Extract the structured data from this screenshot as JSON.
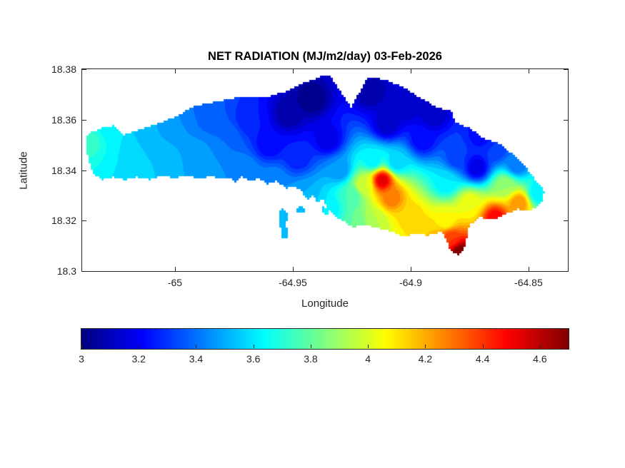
{
  "figure": {
    "title": "NET RADIATION (MJ/m2/day) 03-Feb-2026",
    "background_color": "#ffffff",
    "axis_color": "#262626"
  },
  "axes": {
    "xlabel": "Longitude",
    "ylabel": "Latitude",
    "xlim": [
      -65.0394,
      -64.8333
    ],
    "ylim": [
      18.3,
      18.38
    ],
    "xticks": [
      {
        "value": -65,
        "label": "-65"
      },
      {
        "value": -64.95,
        "label": "-64.95"
      },
      {
        "value": -64.9,
        "label": "-64.9"
      },
      {
        "value": -64.85,
        "label": "-64.85"
      }
    ],
    "yticks": [
      {
        "value": 18.3,
        "label": "18.3"
      },
      {
        "value": 18.32,
        "label": "18.32"
      },
      {
        "value": 18.34,
        "label": "18.34"
      },
      {
        "value": 18.36,
        "label": "18.36"
      },
      {
        "value": 18.38,
        "label": "18.38"
      }
    ]
  },
  "colorbar": {
    "orientation": "horizontal",
    "min": 3,
    "max": 4.7,
    "ticks": [
      {
        "value": 3,
        "label": "3"
      },
      {
        "value": 3.2,
        "label": "3.2"
      },
      {
        "value": 3.4,
        "label": "3.4"
      },
      {
        "value": 3.6,
        "label": "3.6"
      },
      {
        "value": 3.8,
        "label": "3.8"
      },
      {
        "value": 4,
        "label": "4"
      },
      {
        "value": 4.2,
        "label": "4.2"
      },
      {
        "value": 4.4,
        "label": "4.4"
      },
      {
        "value": 4.6,
        "label": "4.6"
      }
    ]
  },
  "chart_data": {
    "type": "heatmap",
    "subtype": "filled-contour-map-over-island",
    "title": "NET RADIATION (MJ/m2/day) 03-Feb-2026",
    "value_name": "Net radiation (MJ/m2/day)",
    "colormap": "jet",
    "value_range": [
      3,
      4.7
    ],
    "contour_level_step": 0.05,
    "xlabel": "Longitude",
    "ylabel": "Latitude",
    "island_outline_lonlat": [
      [
        -65.0379,
        18.3495
      ],
      [
        -65.037,
        18.3543
      ],
      [
        -65.0318,
        18.3565
      ],
      [
        -65.0258,
        18.3577
      ],
      [
        -65.0221,
        18.3537
      ],
      [
        -65.0152,
        18.356
      ],
      [
        -65.0061,
        18.3588
      ],
      [
        -64.9985,
        18.3616
      ],
      [
        -64.993,
        18.365
      ],
      [
        -64.9833,
        18.367
      ],
      [
        -64.9727,
        18.369
      ],
      [
        -64.9621,
        18.3687
      ],
      [
        -64.953,
        18.3712
      ],
      [
        -64.9455,
        18.3746
      ],
      [
        -64.9385,
        18.3769
      ],
      [
        -64.9348,
        18.378
      ],
      [
        -64.9252,
        18.365
      ],
      [
        -64.9182,
        18.3769
      ],
      [
        -64.9106,
        18.3758
      ],
      [
        -64.9021,
        18.3724
      ],
      [
        -64.8955,
        18.3684
      ],
      [
        -64.8888,
        18.365
      ],
      [
        -64.8827,
        18.3633
      ],
      [
        -64.8809,
        18.3588
      ],
      [
        -64.8748,
        18.3565
      ],
      [
        -64.8688,
        18.3526
      ],
      [
        -64.8621,
        18.3503
      ],
      [
        -64.8567,
        18.3464
      ],
      [
        -64.8515,
        18.3418
      ],
      [
        -64.847,
        18.3362
      ],
      [
        -64.8433,
        18.3317
      ],
      [
        -64.8445,
        18.3269
      ],
      [
        -64.8494,
        18.3238
      ],
      [
        -64.8545,
        18.3246
      ],
      [
        -64.8597,
        18.3226
      ],
      [
        -64.8645,
        18.3204
      ],
      [
        -64.8706,
        18.3212
      ],
      [
        -64.8748,
        18.3184
      ],
      [
        -64.8758,
        18.3156
      ],
      [
        -64.8767,
        18.3099
      ],
      [
        -64.8794,
        18.3062
      ],
      [
        -64.8833,
        18.3079
      ],
      [
        -64.8848,
        18.3127
      ],
      [
        -64.887,
        18.3156
      ],
      [
        -64.8924,
        18.3141
      ],
      [
        -64.8979,
        18.315
      ],
      [
        -64.903,
        18.3136
      ],
      [
        -64.9082,
        18.3158
      ],
      [
        -64.9136,
        18.317
      ],
      [
        -64.9191,
        18.3184
      ],
      [
        -64.9242,
        18.3175
      ],
      [
        -64.9288,
        18.3198
      ],
      [
        -64.9324,
        18.322
      ],
      [
        -64.9355,
        18.3249
      ],
      [
        -64.9373,
        18.3288
      ],
      [
        -64.9394,
        18.3268
      ],
      [
        -64.9415,
        18.3305
      ],
      [
        -64.9439,
        18.3283
      ],
      [
        -64.9464,
        18.3317
      ],
      [
        -64.9494,
        18.3339
      ],
      [
        -64.953,
        18.3328
      ],
      [
        -64.9567,
        18.3356
      ],
      [
        -64.9606,
        18.3345
      ],
      [
        -64.9645,
        18.3367
      ],
      [
        -64.9682,
        18.3356
      ],
      [
        -64.9718,
        18.3373
      ],
      [
        -64.9742,
        18.3351
      ],
      [
        -64.9767,
        18.3373
      ],
      [
        -64.9803,
        18.3362
      ],
      [
        -64.9848,
        18.3379
      ],
      [
        -64.9894,
        18.3362
      ],
      [
        -64.9948,
        18.3379
      ],
      [
        -65.0,
        18.3368
      ],
      [
        -65.0052,
        18.3379
      ],
      [
        -65.0106,
        18.3362
      ],
      [
        -65.0161,
        18.3373
      ],
      [
        -65.0212,
        18.3362
      ],
      [
        -65.0264,
        18.3373
      ],
      [
        -65.0312,
        18.3362
      ],
      [
        -65.0348,
        18.339
      ],
      [
        -65.0367,
        18.3438
      ]
    ],
    "islet_outlines_lonlat": [
      [
        [
          -64.9545,
          18.3254
        ],
        [
          -64.9524,
          18.3232
        ],
        [
          -64.9527,
          18.3175
        ],
        [
          -64.9515,
          18.3136
        ],
        [
          -64.9542,
          18.3124
        ],
        [
          -64.9555,
          18.3181
        ],
        [
          -64.9558,
          18.3232
        ]
      ],
      [
        [
          -64.9476,
          18.326
        ],
        [
          -64.9445,
          18.3249
        ],
        [
          -64.9455,
          18.3226
        ],
        [
          -64.9485,
          18.3237
        ]
      ],
      [
        [
          -64.9373,
          18.3254
        ],
        [
          -64.9342,
          18.3246
        ],
        [
          -64.9352,
          18.3223
        ],
        [
          -64.9382,
          18.3231
        ]
      ]
    ],
    "sample_points_lonlat_value": [
      [
        -65.036,
        18.351,
        3.72
      ],
      [
        -65.027,
        18.357,
        3.62
      ],
      [
        -65.02,
        18.349,
        3.6
      ],
      [
        -65.02,
        18.338,
        3.6
      ],
      [
        -65.012,
        18.354,
        3.5
      ],
      [
        -65.005,
        18.343,
        3.55
      ],
      [
        -64.998,
        18.358,
        3.45
      ],
      [
        -64.99,
        18.338,
        3.5
      ],
      [
        -64.99,
        18.345,
        3.48
      ],
      [
        -64.985,
        18.362,
        3.35
      ],
      [
        -64.978,
        18.352,
        3.4
      ],
      [
        -64.97,
        18.34,
        3.45
      ],
      [
        -64.968,
        18.36,
        3.25
      ],
      [
        -64.96,
        18.35,
        3.2
      ],
      [
        -64.958,
        18.336,
        3.45
      ],
      [
        -64.952,
        18.362,
        3.05
      ],
      [
        -64.948,
        18.345,
        3.25
      ],
      [
        -64.942,
        18.368,
        3.0
      ],
      [
        -64.935,
        18.352,
        3.15
      ],
      [
        -64.93,
        18.34,
        3.45
      ],
      [
        -64.925,
        18.33,
        3.75
      ],
      [
        -64.917,
        18.371,
        3.05
      ],
      [
        -64.91,
        18.358,
        3.1
      ],
      [
        -64.902,
        18.365,
        3.1
      ],
      [
        -64.895,
        18.352,
        3.2
      ],
      [
        -64.916,
        18.344,
        3.6
      ],
      [
        -64.906,
        18.343,
        3.55
      ],
      [
        -64.912,
        18.336,
        4.55
      ],
      [
        -64.92,
        18.334,
        4.0
      ],
      [
        -64.908,
        18.329,
        4.3
      ],
      [
        -64.9,
        18.322,
        4.15
      ],
      [
        -64.893,
        18.315,
        4.15
      ],
      [
        -64.885,
        18.32,
        4.05
      ],
      [
        -64.883,
        18.313,
        4.4
      ],
      [
        -64.879,
        18.307,
        4.75
      ],
      [
        -64.915,
        18.32,
        3.95
      ],
      [
        -64.923,
        18.318,
        3.8
      ],
      [
        -64.935,
        18.325,
        3.6
      ],
      [
        -64.945,
        18.33,
        3.5
      ],
      [
        -64.948,
        18.322,
        3.5
      ],
      [
        -64.955,
        18.315,
        3.55
      ],
      [
        -64.89,
        18.362,
        3.1
      ],
      [
        -64.88,
        18.345,
        3.3
      ],
      [
        -64.885,
        18.335,
        3.6
      ],
      [
        -64.875,
        18.327,
        4.05
      ],
      [
        -64.872,
        18.341,
        3.15
      ],
      [
        -64.87,
        18.354,
        3.2
      ],
      [
        -64.864,
        18.348,
        3.3
      ],
      [
        -64.864,
        18.321,
        4.5
      ],
      [
        -64.86,
        18.334,
        3.9
      ],
      [
        -64.855,
        18.342,
        3.4
      ],
      [
        -64.854,
        18.327,
        4.25
      ],
      [
        -64.846,
        18.331,
        3.6
      ]
    ]
  }
}
